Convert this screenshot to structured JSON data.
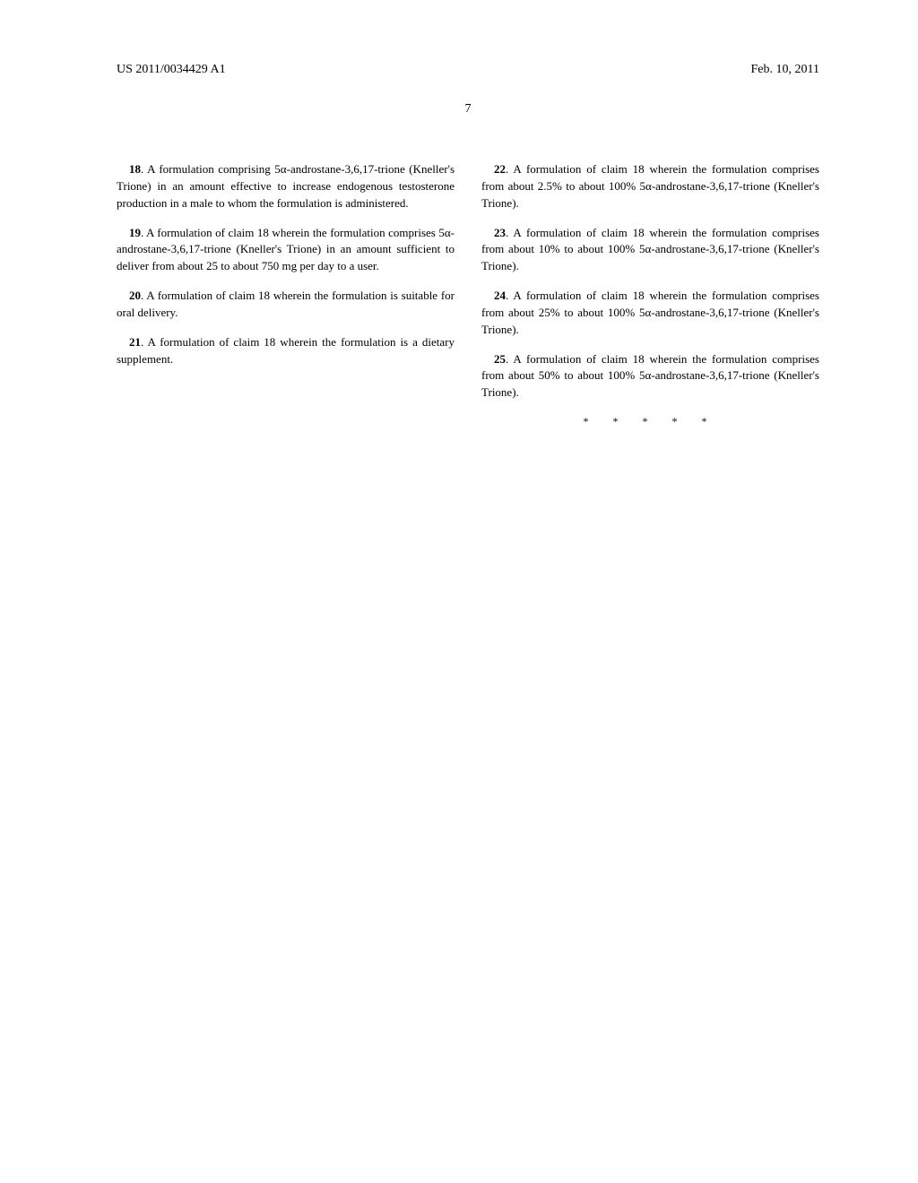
{
  "header": {
    "pub_number": "US 2011/0034429 A1",
    "pub_date": "Feb. 10, 2011"
  },
  "page_number": "7",
  "left_claims": [
    {
      "num": "18",
      "text": ". A formulation comprising 5α-androstane-3,6,17-trione (Kneller's Trione) in an amount effective to increase endogenous testosterone production in a male to whom the formulation is administered."
    },
    {
      "num": "19",
      "text": ". A formulation of claim 18 wherein the formulation comprises 5α-androstane-3,6,17-trione (Kneller's Trione) in an amount sufficient to deliver from about 25 to about 750 mg per day to a user."
    },
    {
      "num": "20",
      "text": ". A formulation of claim 18 wherein the formulation is suitable for oral delivery."
    },
    {
      "num": "21",
      "text": ". A formulation of claim 18 wherein the formulation is a dietary supplement."
    }
  ],
  "right_claims": [
    {
      "num": "22",
      "text": ". A formulation of claim 18 wherein the formulation comprises from about 2.5% to about 100% 5α-androstane-3,6,17-trione (Kneller's Trione)."
    },
    {
      "num": "23",
      "text": ". A formulation of claim 18 wherein the formulation comprises from about 10% to about 100% 5α-androstane-3,6,17-trione (Kneller's Trione)."
    },
    {
      "num": "24",
      "text": ". A formulation of claim 18 wherein the formulation comprises from about 25% to about 100% 5α-androstane-3,6,17-trione (Kneller's Trione)."
    },
    {
      "num": "25",
      "text": ". A formulation of claim 18 wherein the formulation comprises from about 50% to about 100% 5α-androstane-3,6,17-trione (Kneller's Trione)."
    }
  ],
  "end_marks": "* * * * *"
}
